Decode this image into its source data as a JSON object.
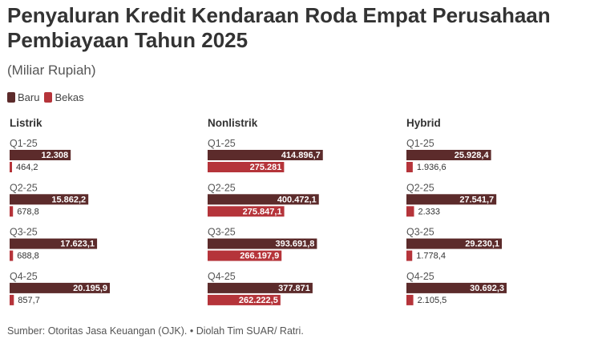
{
  "title": "Penyaluran Kredit Kendaraan Roda Empat Perusahaan Pembiayaan Tahun 2025",
  "subtitle": "(Miliar Rupiah)",
  "source": "Sumber: Otoritas Jasa Keuangan (OJK). • Diolah Tim SUAR/ Ratri.",
  "colors": {
    "baru": "#5c2b2b",
    "bekas": "#b5343a"
  },
  "chart_data": [
    {
      "type": "bar",
      "title": "Listrik",
      "categories": [
        "Q1-25",
        "Q2-25",
        "Q3-25",
        "Q4-25"
      ],
      "series": [
        {
          "name": "Baru",
          "values": [
            12308,
            15862.2,
            17623.1,
            20195.9
          ],
          "labels": [
            "12.308",
            "15.862,2",
            "17.623,1",
            "20.195,9"
          ]
        },
        {
          "name": "Bekas",
          "values": [
            464.2,
            678.8,
            688.8,
            857.7
          ],
          "labels": [
            "464,2",
            "678,8",
            "688,8",
            "857,7"
          ]
        }
      ],
      "legend": "top-left"
    },
    {
      "type": "bar",
      "title": "Nonlistrik",
      "categories": [
        "Q1-25",
        "Q2-25",
        "Q3-25",
        "Q4-25"
      ],
      "series": [
        {
          "name": "Baru",
          "values": [
            414896.7,
            400472.1,
            393691.8,
            377871
          ],
          "labels": [
            "414.896,7",
            "400.472,1",
            "393.691,8",
            "377.871"
          ]
        },
        {
          "name": "Bekas",
          "values": [
            275281,
            275847.1,
            266197.9,
            262222.5
          ],
          "labels": [
            "275.281",
            "275.847,1",
            "266.197,9",
            "262.222,5"
          ]
        }
      ],
      "legend": "top-left"
    },
    {
      "type": "bar",
      "title": "Hybrid",
      "categories": [
        "Q1-25",
        "Q2-25",
        "Q3-25",
        "Q4-25"
      ],
      "series": [
        {
          "name": "Baru",
          "values": [
            25928.4,
            27541.7,
            29230.1,
            30692.3
          ],
          "labels": [
            "25.928,4",
            "27.541,7",
            "29.230,1",
            "30.692,3"
          ]
        },
        {
          "name": "Bekas",
          "values": [
            1936.6,
            2333,
            1778.4,
            2105.5
          ],
          "labels": [
            "1.936,6",
            "2.333",
            "1.778,4",
            "2.105,5"
          ]
        }
      ],
      "legend": "top-left"
    }
  ]
}
